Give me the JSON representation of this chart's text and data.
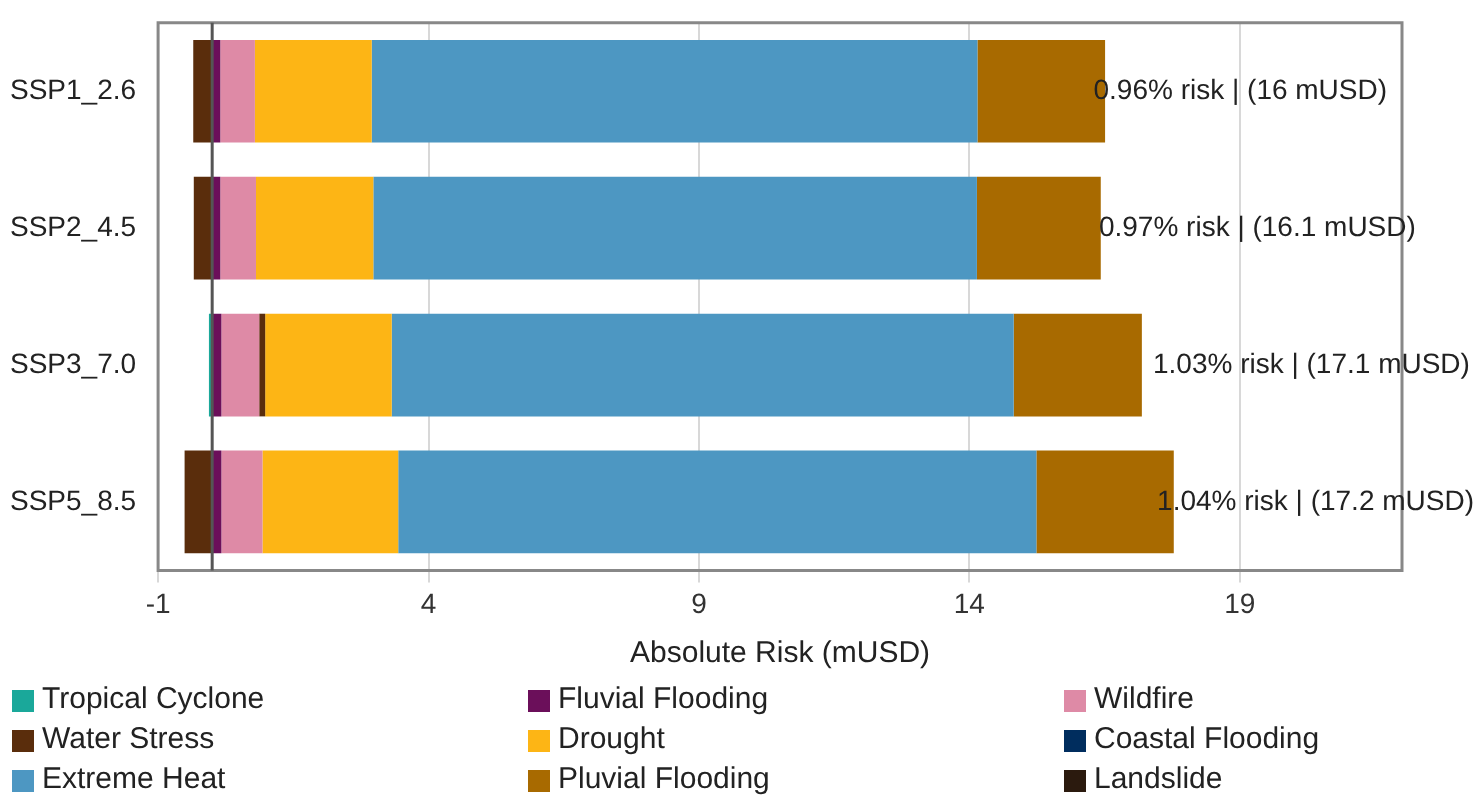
{
  "chart_data": {
    "type": "bar",
    "orientation": "horizontal",
    "stacked": true,
    "xlabel": "Absolute Risk (mUSD)",
    "categories": [
      "SSP1_2.6",
      "SSP2_4.5",
      "SSP3_7.0",
      "SSP5_8.5"
    ],
    "series": [
      {
        "name": "Tropical Cyclone",
        "color": "#1aa89a",
        "values": [
          0,
          0,
          -0.06,
          0
        ]
      },
      {
        "name": "Fluvial Flooding",
        "color": "#6b0f5a",
        "values": [
          0.15,
          0.15,
          0.17,
          0.17
        ]
      },
      {
        "name": "Wildfire",
        "color": "#de8aa6",
        "values": [
          0.64,
          0.66,
          0.7,
          0.76
        ]
      },
      {
        "name": "Water Stress",
        "color": "#5a2d0c",
        "values": [
          -0.35,
          -0.34,
          0.11,
          -0.51
        ]
      },
      {
        "name": "Drought",
        "color": "#fdb515",
        "values": [
          2.16,
          2.17,
          2.34,
          2.51
        ]
      },
      {
        "name": "Coastal Flooding",
        "color": "#002d5e",
        "values": [
          0,
          0,
          0,
          0
        ]
      },
      {
        "name": "Extreme Heat",
        "color": "#4d97c2",
        "values": [
          11.2,
          11.16,
          11.5,
          11.8
        ]
      },
      {
        "name": "Pluvial Flooding",
        "color": "#a86a00",
        "values": [
          2.36,
          2.29,
          2.37,
          2.54
        ]
      },
      {
        "name": "Landslide",
        "color": "#2b1a0e",
        "values": [
          0,
          0,
          0,
          0
        ]
      }
    ],
    "xlim": [
      -1,
      22
    ],
    "xticks": [
      -1,
      4,
      9,
      14,
      19
    ],
    "grid": "x",
    "legend": "bottom",
    "ref_lines": [
      {
        "axis": "x",
        "value": 0,
        "color": "#555555"
      }
    ],
    "annotations": [
      {
        "text": "0.96% risk | (16 mUSD)",
        "x": 16,
        "y": "SSP1_2.6"
      },
      {
        "text": "0.97% risk | (16.1 mUSD)",
        "x": 16.1,
        "y": "SSP2_4.5"
      },
      {
        "text": "1.03% risk | (17.1 mUSD)",
        "x": 17.1,
        "y": "SSP3_7.0"
      },
      {
        "text": "1.04% risk | (17.2 mUSD)",
        "x": 17.2,
        "y": "SSP5_8.5"
      }
    ]
  }
}
